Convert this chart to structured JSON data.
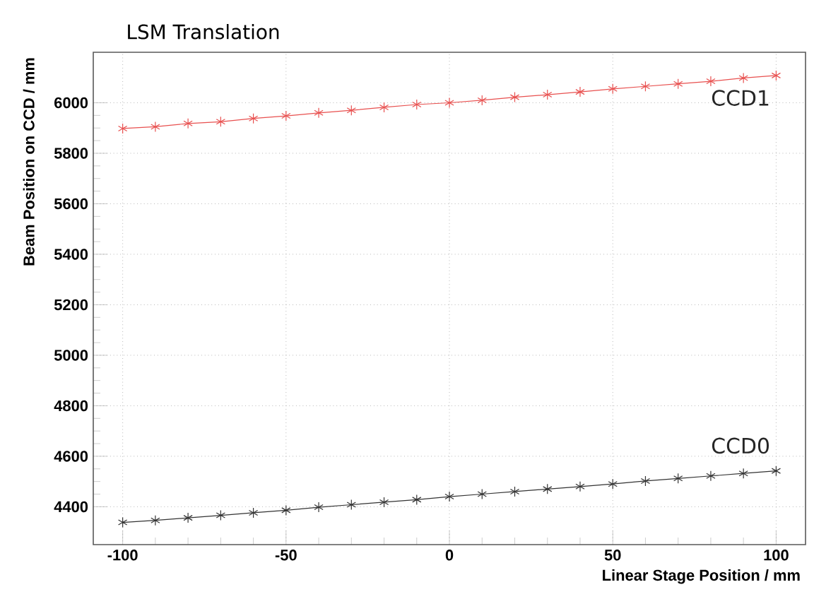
{
  "chart_data": {
    "type": "line",
    "title": "LSM Translation",
    "xlabel": "Linear Stage Position /  mm",
    "ylabel": "Beam Position on CCD /  mm",
    "x": [
      -100,
      -90,
      -80,
      -70,
      -60,
      -50,
      -40,
      -30,
      -20,
      -10,
      0,
      10,
      20,
      30,
      40,
      50,
      60,
      70,
      80,
      90,
      100
    ],
    "series": [
      {
        "name": "CCD1",
        "color": "#e8504f",
        "values": [
          5898,
          5905,
          5918,
          5925,
          5938,
          5948,
          5960,
          5970,
          5982,
          5993,
          6000,
          6010,
          6022,
          6032,
          6043,
          6055,
          6065,
          6075,
          6085,
          6098,
          6108
        ]
      },
      {
        "name": "CCD0",
        "color": "#333333",
        "values": [
          4338,
          4346,
          4356,
          4366,
          4376,
          4386,
          4398,
          4408,
          4418,
          4428,
          4440,
          4450,
          4460,
          4470,
          4480,
          4490,
          4502,
          4512,
          4522,
          4532,
          4542
        ]
      }
    ],
    "xlim": [
      -109,
      109
    ],
    "ylim": [
      4250,
      6200
    ],
    "xticks": [
      -100,
      -50,
      0,
      50,
      100
    ],
    "yticks": [
      4400,
      4600,
      4800,
      5000,
      5200,
      5400,
      5600,
      5800,
      6000
    ],
    "grid": true,
    "marker": "cross",
    "line_style": "solid"
  }
}
